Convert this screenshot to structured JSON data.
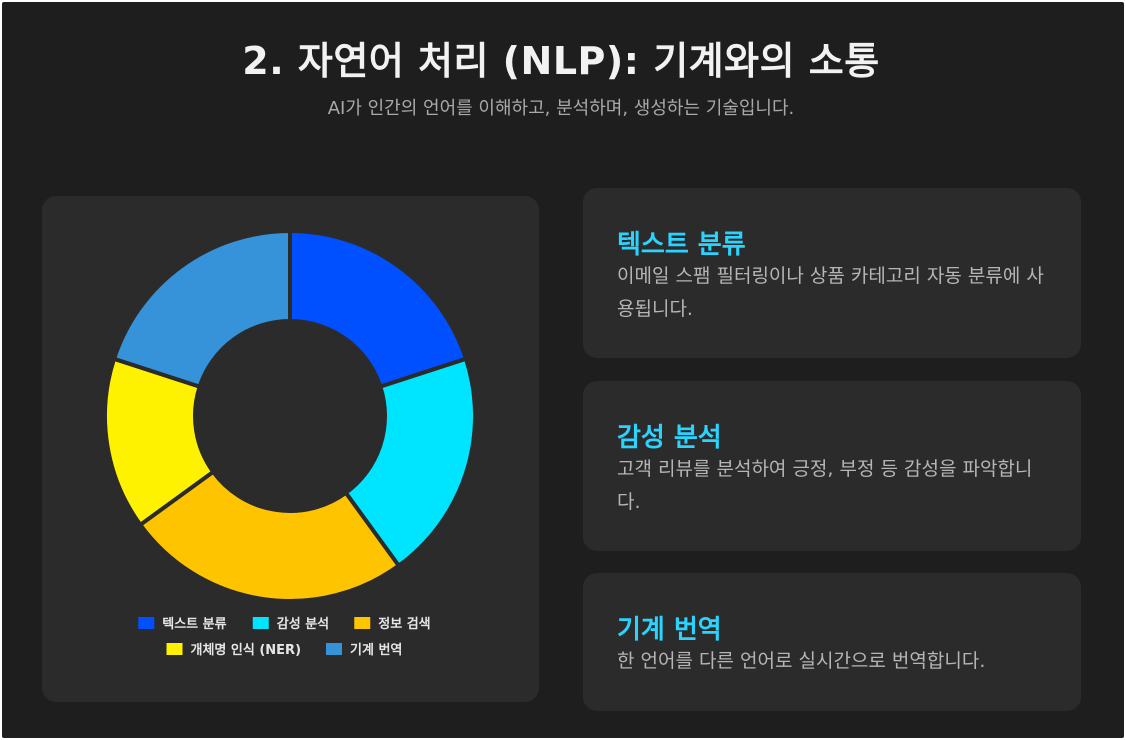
{
  "header": {
    "title": "2. 자연어 처리 (NLP): 기계와의 소통",
    "subtitle": "AI가 인간의 언어를 이해하고, 분석하며, 생성하는 기술입니다."
  },
  "chart_data": {
    "type": "doughnut",
    "categories": [
      "텍스트 분류",
      "감성 분석",
      "정보 검색",
      "개체명 인식 (NER)",
      "기계 번역"
    ],
    "values": [
      20,
      20,
      25,
      15,
      20
    ],
    "colors": [
      "#0050ff",
      "#00e5ff",
      "#ffc400",
      "#fff200",
      "#3693d9"
    ],
    "legend_position": "bottom"
  },
  "features": [
    {
      "title": "텍스트 분류",
      "desc": "이메일 스팸 필터링이나 상품 카테고리 자동 분류에 사용됩니다."
    },
    {
      "title": "감성 분석",
      "desc": "고객 리뷰를 분석하여 긍정, 부정 등 감성을 파악합니다."
    },
    {
      "title": "기계 번역",
      "desc": "한 언어를 다른 언어로 실시간으로 번역합니다."
    }
  ]
}
